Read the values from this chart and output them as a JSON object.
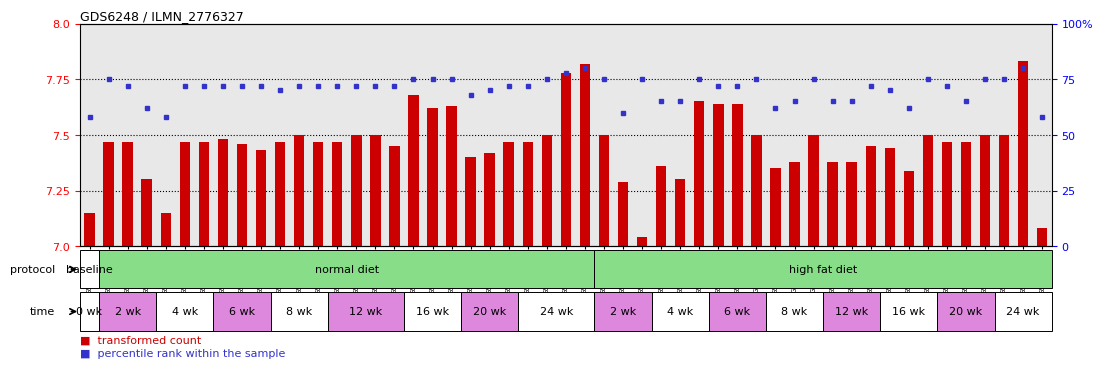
{
  "title": "GDS6248 / ILMN_2776327",
  "samples": [
    "GSM994787",
    "GSM994788",
    "GSM994789",
    "GSM994790",
    "GSM994791",
    "GSM994792",
    "GSM994793",
    "GSM994794",
    "GSM994795",
    "GSM994796",
    "GSM994797",
    "GSM994798",
    "GSM994799",
    "GSM994800",
    "GSM994801",
    "GSM994802",
    "GSM994803",
    "GSM994804",
    "GSM994805",
    "GSM994806",
    "GSM994807",
    "GSM994808",
    "GSM994809",
    "GSM994810",
    "GSM994811",
    "GSM994812",
    "GSM994813",
    "GSM994814",
    "GSM994815",
    "GSM994816",
    "GSM994817",
    "GSM994818",
    "GSM994819",
    "GSM994820",
    "GSM994821",
    "GSM994822",
    "GSM994823",
    "GSM994824",
    "GSM994825",
    "GSM994826",
    "GSM994827",
    "GSM994828",
    "GSM994829",
    "GSM994830",
    "GSM994831",
    "GSM994832",
    "GSM994833",
    "GSM994834",
    "GSM994835",
    "GSM994836",
    "GSM994837"
  ],
  "bar_values": [
    7.15,
    7.47,
    7.47,
    7.3,
    7.15,
    7.47,
    7.47,
    7.48,
    7.46,
    7.43,
    7.47,
    7.5,
    7.47,
    7.47,
    7.5,
    7.5,
    7.45,
    7.68,
    7.62,
    7.63,
    7.4,
    7.42,
    7.47,
    7.47,
    7.5,
    7.78,
    7.82,
    7.5,
    7.29,
    7.04,
    7.36,
    7.3,
    7.65,
    7.64,
    7.64,
    7.5,
    7.35,
    7.38,
    7.5,
    7.38,
    7.38,
    7.45,
    7.44,
    7.34,
    7.5,
    7.47,
    7.47,
    7.5,
    7.5,
    7.83,
    7.08
  ],
  "dot_values": [
    58,
    75,
    72,
    62,
    58,
    72,
    72,
    72,
    72,
    72,
    70,
    72,
    72,
    72,
    72,
    72,
    72,
    75,
    75,
    75,
    68,
    70,
    72,
    72,
    75,
    78,
    80,
    75,
    60,
    75,
    65,
    65,
    75,
    72,
    72,
    75,
    62,
    65,
    75,
    65,
    65,
    72,
    70,
    62,
    75,
    72,
    65,
    75,
    75,
    80,
    58
  ],
  "ylim_left": [
    7.0,
    8.0
  ],
  "ylim_right": [
    0,
    100
  ],
  "yticks_left": [
    7.0,
    7.25,
    7.5,
    7.75,
    8.0
  ],
  "yticks_right": [
    0,
    25,
    50,
    75,
    100
  ],
  "bar_color": "#cc0000",
  "dot_color": "#3333cc",
  "bg_color": "#e8e8e8",
  "protocol_groups": [
    {
      "label": "baseline",
      "start": 0,
      "end": 1,
      "color": "#ffffff"
    },
    {
      "label": "normal diet",
      "start": 1,
      "end": 27,
      "color": "#88dd88"
    },
    {
      "label": "high fat diet",
      "start": 27,
      "end": 51,
      "color": "#88dd88"
    }
  ],
  "time_groups": [
    {
      "label": "0 wk",
      "start": 0,
      "end": 1,
      "color": "#ffffff"
    },
    {
      "label": "2 wk",
      "start": 1,
      "end": 4,
      "color": "#dd88dd"
    },
    {
      "label": "4 wk",
      "start": 4,
      "end": 7,
      "color": "#ffffff"
    },
    {
      "label": "6 wk",
      "start": 7,
      "end": 10,
      "color": "#dd88dd"
    },
    {
      "label": "8 wk",
      "start": 10,
      "end": 13,
      "color": "#ffffff"
    },
    {
      "label": "12 wk",
      "start": 13,
      "end": 17,
      "color": "#dd88dd"
    },
    {
      "label": "16 wk",
      "start": 17,
      "end": 20,
      "color": "#ffffff"
    },
    {
      "label": "20 wk",
      "start": 20,
      "end": 23,
      "color": "#dd88dd"
    },
    {
      "label": "24 wk",
      "start": 23,
      "end": 27,
      "color": "#ffffff"
    },
    {
      "label": "2 wk",
      "start": 27,
      "end": 30,
      "color": "#dd88dd"
    },
    {
      "label": "4 wk",
      "start": 30,
      "end": 33,
      "color": "#ffffff"
    },
    {
      "label": "6 wk",
      "start": 33,
      "end": 36,
      "color": "#dd88dd"
    },
    {
      "label": "8 wk",
      "start": 36,
      "end": 39,
      "color": "#ffffff"
    },
    {
      "label": "12 wk",
      "start": 39,
      "end": 42,
      "color": "#dd88dd"
    },
    {
      "label": "16 wk",
      "start": 42,
      "end": 45,
      "color": "#ffffff"
    },
    {
      "label": "20 wk",
      "start": 45,
      "end": 48,
      "color": "#dd88dd"
    },
    {
      "label": "24 wk",
      "start": 48,
      "end": 51,
      "color": "#ffffff"
    }
  ]
}
